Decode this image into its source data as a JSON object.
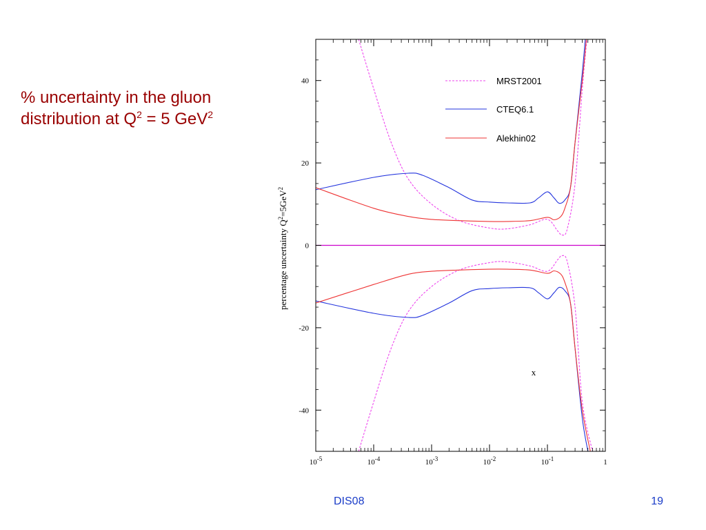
{
  "slide": {
    "title_line1": "% uncertainty in the gluon",
    "title_line2_pre": "distribution at Q",
    "title_sup1": "2",
    "title_line2_mid": " = 5 GeV",
    "title_sup2": "2",
    "footer_center": "DIS08",
    "footer_right": "19",
    "title_color": "#990000",
    "footer_color": "#1a3cc8"
  },
  "chart_data": {
    "type": "line",
    "xscale": "log",
    "xlim": [
      1e-05,
      1
    ],
    "ylim": [
      -50,
      50
    ],
    "xlabel": "x",
    "ylabel_base": "percentage uncertainty Q",
    "ylabel_sup1": "2",
    "ylabel_mid": "=5GeV",
    "ylabel_sup2": "2",
    "y_ticks": [
      40,
      20,
      0,
      -20,
      -40
    ],
    "y_tick_labels": [
      "40",
      "20",
      "0",
      "-20",
      "-40"
    ],
    "x_ticks": [
      1e-05,
      0.0001,
      0.001,
      0.01,
      0.1,
      1
    ],
    "x_tick_bases": [
      "10",
      "10",
      "10",
      "10",
      "10",
      "1"
    ],
    "x_tick_exps": [
      "-5",
      "-4",
      "-3",
      "-2",
      "-1",
      ""
    ],
    "zero_line_color": "#cc00cc",
    "legend_placement": "top-right",
    "series": [
      {
        "name": "MRST2001",
        "color": "#ee44ee",
        "style": "dashed",
        "upper": [
          [
            5.5e-05,
            50
          ],
          [
            0.0001,
            38
          ],
          [
            0.0002,
            25
          ],
          [
            0.0004,
            16
          ],
          [
            0.001,
            10
          ],
          [
            0.003,
            6
          ],
          [
            0.01,
            4.2
          ],
          [
            0.02,
            4
          ],
          [
            0.05,
            5
          ],
          [
            0.1,
            6.3
          ],
          [
            0.15,
            3.5
          ],
          [
            0.18,
            2.5
          ],
          [
            0.22,
            4
          ],
          [
            0.3,
            15
          ],
          [
            0.4,
            38
          ],
          [
            0.48,
            50
          ]
        ],
        "lower": [
          [
            5.5e-05,
            -50
          ],
          [
            0.0001,
            -38
          ],
          [
            0.0002,
            -25
          ],
          [
            0.0004,
            -16
          ],
          [
            0.001,
            -10
          ],
          [
            0.003,
            -6
          ],
          [
            0.01,
            -4.2
          ],
          [
            0.02,
            -4
          ],
          [
            0.05,
            -5
          ],
          [
            0.1,
            -6.3
          ],
          [
            0.15,
            -3.5
          ],
          [
            0.18,
            -2.5
          ],
          [
            0.22,
            -4
          ],
          [
            0.3,
            -15
          ],
          [
            0.4,
            -38
          ],
          [
            0.6,
            -50
          ]
        ]
      },
      {
        "name": "CTEQ6.1",
        "color": "#2233dd",
        "style": "solid",
        "upper": [
          [
            1e-05,
            13.5
          ],
          [
            0.0001,
            16.5
          ],
          [
            0.0004,
            17.5
          ],
          [
            0.0007,
            17
          ],
          [
            0.002,
            14
          ],
          [
            0.005,
            11
          ],
          [
            0.01,
            10.5
          ],
          [
            0.02,
            10.3
          ],
          [
            0.05,
            10.3
          ],
          [
            0.07,
            11.5
          ],
          [
            0.1,
            13
          ],
          [
            0.13,
            11.5
          ],
          [
            0.16,
            10.2
          ],
          [
            0.2,
            11
          ],
          [
            0.25,
            14
          ],
          [
            0.3,
            25
          ],
          [
            0.4,
            42
          ],
          [
            0.45,
            50
          ]
        ],
        "lower": [
          [
            1e-05,
            -13.5
          ],
          [
            0.0001,
            -16.5
          ],
          [
            0.0004,
            -17.5
          ],
          [
            0.0007,
            -17
          ],
          [
            0.002,
            -14
          ],
          [
            0.005,
            -11
          ],
          [
            0.01,
            -10.5
          ],
          [
            0.02,
            -10.3
          ],
          [
            0.05,
            -10.3
          ],
          [
            0.07,
            -11.5
          ],
          [
            0.1,
            -13
          ],
          [
            0.13,
            -11.5
          ],
          [
            0.16,
            -10.2
          ],
          [
            0.2,
            -11
          ],
          [
            0.25,
            -14
          ],
          [
            0.3,
            -25
          ],
          [
            0.4,
            -42
          ],
          [
            0.5,
            -50
          ]
        ]
      },
      {
        "name": "Alekhin02",
        "color": "#ee3333",
        "style": "solid",
        "upper": [
          [
            1e-05,
            14
          ],
          [
            0.0001,
            9
          ],
          [
            0.0004,
            7
          ],
          [
            0.001,
            6.3
          ],
          [
            0.003,
            6
          ],
          [
            0.01,
            5.8
          ],
          [
            0.02,
            5.8
          ],
          [
            0.05,
            6
          ],
          [
            0.1,
            6.8
          ],
          [
            0.13,
            6.2
          ],
          [
            0.17,
            7
          ],
          [
            0.2,
            9
          ],
          [
            0.25,
            14
          ],
          [
            0.3,
            25
          ],
          [
            0.4,
            40
          ],
          [
            0.47,
            50
          ]
        ],
        "lower": [
          [
            1e-05,
            -14
          ],
          [
            0.0001,
            -9.5
          ],
          [
            0.0004,
            -7
          ],
          [
            0.001,
            -6.3
          ],
          [
            0.003,
            -6
          ],
          [
            0.01,
            -5.8
          ],
          [
            0.02,
            -5.8
          ],
          [
            0.05,
            -6
          ],
          [
            0.1,
            -6.8
          ],
          [
            0.13,
            -6.2
          ],
          [
            0.17,
            -7
          ],
          [
            0.2,
            -9
          ],
          [
            0.25,
            -14
          ],
          [
            0.3,
            -25
          ],
          [
            0.4,
            -40
          ],
          [
            0.55,
            -50
          ]
        ]
      }
    ]
  }
}
